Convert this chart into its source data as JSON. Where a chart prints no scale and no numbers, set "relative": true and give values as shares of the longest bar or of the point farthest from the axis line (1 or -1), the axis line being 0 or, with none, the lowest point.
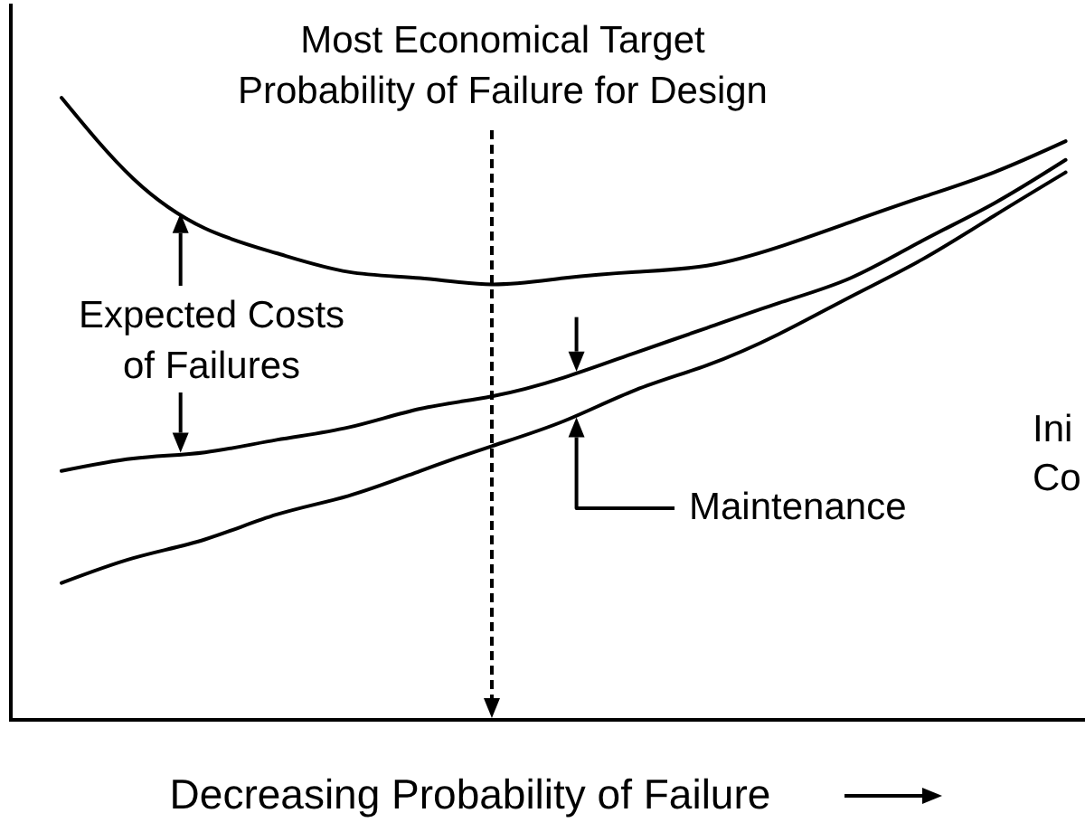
{
  "chart_data": {
    "type": "line",
    "relative": true,
    "xlabel": "Decreasing Probability of Failure",
    "categories": [
      null,
      null,
      null,
      null,
      null,
      null,
      null,
      null,
      null,
      null,
      null,
      null,
      null,
      null,
      null
    ],
    "series": [
      {
        "color": "#000000",
        "values": [
          1.0,
          0.87,
          0.79,
          0.75,
          0.72,
          0.71,
          0.7,
          0.71,
          0.72,
          0.73,
          0.76,
          0.8,
          0.84,
          0.88,
          0.93
        ]
      },
      {
        "color": "#000000",
        "values": [
          0.4,
          0.42,
          0.43,
          0.45,
          0.47,
          0.5,
          0.52,
          0.55,
          0.59,
          0.63,
          0.67,
          0.71,
          0.77,
          0.83,
          0.9
        ]
      },
      {
        "color": "#000000",
        "values": [
          0.22,
          0.26,
          0.29,
          0.33,
          0.36,
          0.4,
          0.44,
          0.48,
          0.53,
          0.57,
          0.62,
          0.68,
          0.74,
          0.81,
          0.88
        ]
      }
    ],
    "annotations": [
      "Most Economical Target\nProbability of Failure for Design",
      "Expected Costs\nof Failures",
      "Maintenance",
      "Ini\nCo"
    ]
  }
}
